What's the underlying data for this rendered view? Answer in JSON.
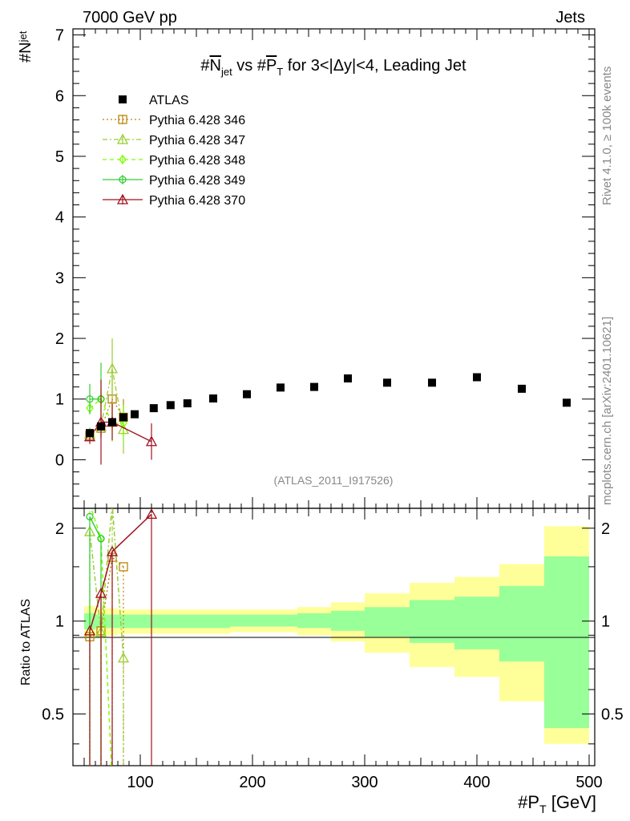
{
  "header": {
    "left": "7000 GeV pp",
    "right": "Jets"
  },
  "side_text": {
    "rivet": "Rivet 4.1.0, ≥ 100k events",
    "mcplots": "mcplots.cern.ch [arXiv:2401.10621]"
  },
  "chart_data": {
    "type": "scatter",
    "title": "#N_jet vs #P_T for 3<|Δy|<4, Leading Jet",
    "title_parts": {
      "a": "#",
      "b": "N",
      "c": "jet",
      "d": " vs #",
      "e": "P",
      "f": "T",
      "g": " for 3<|Δy|<4, Leading Jet"
    },
    "ylabel": {
      "main": "#N",
      "sub": "jet"
    },
    "xlabel": {
      "main": "#P",
      "sub": "T",
      "unit": " [GeV]"
    },
    "ratio_ylabel": "Ratio to ATLAS",
    "analysis_tag": "(ATLAS_2011_I917526)",
    "xlim": [
      40,
      505
    ],
    "ylim": [
      -0.8,
      7.1
    ],
    "ratio_ylim": [
      0.34,
      2.32
    ],
    "x_ticks": [
      100,
      200,
      300,
      400,
      500
    ],
    "x_tick_labels": [
      "100",
      "200",
      "300",
      "400",
      "500"
    ],
    "y_ticks": [
      0,
      1,
      2,
      3,
      4,
      5,
      6,
      7
    ],
    "y_tick_labels": [
      "0",
      "1",
      "2",
      "3",
      "4",
      "5",
      "6",
      "7"
    ],
    "ratio_ticks": [
      0.5,
      1,
      2
    ],
    "ratio_tick_labels": [
      "0.5",
      "1",
      "2"
    ],
    "data": {
      "name": "ATLAS",
      "color": "#000000",
      "x": [
        55,
        65,
        75,
        85,
        95,
        112,
        127,
        142,
        165,
        195,
        225,
        255,
        285,
        320,
        360,
        400,
        440,
        480
      ],
      "y": [
        0.44,
        0.55,
        0.62,
        0.7,
        0.75,
        0.85,
        0.9,
        0.93,
        1.01,
        1.08,
        1.19,
        1.2,
        1.34,
        1.27,
        1.27,
        1.36,
        1.17,
        0.94
      ]
    },
    "ratio_bands": {
      "edges": [
        50,
        60,
        70,
        80,
        90,
        100,
        120,
        135,
        150,
        180,
        210,
        240,
        270,
        300,
        340,
        380,
        420,
        460,
        500
      ],
      "inner_lo": [
        0.94,
        0.95,
        0.95,
        0.95,
        0.95,
        0.95,
        0.95,
        0.95,
        0.95,
        0.96,
        0.96,
        0.95,
        0.93,
        0.89,
        0.85,
        0.81,
        0.74,
        0.45
      ],
      "inner_hi": [
        1.06,
        1.05,
        1.05,
        1.05,
        1.05,
        1.05,
        1.05,
        1.05,
        1.05,
        1.05,
        1.05,
        1.06,
        1.08,
        1.11,
        1.17,
        1.2,
        1.3,
        1.62
      ],
      "outer_lo": [
        0.88,
        0.9,
        0.9,
        0.91,
        0.91,
        0.91,
        0.91,
        0.91,
        0.91,
        0.92,
        0.92,
        0.9,
        0.86,
        0.79,
        0.71,
        0.66,
        0.55,
        0.4
      ],
      "outer_hi": [
        1.12,
        1.1,
        1.1,
        1.09,
        1.09,
        1.09,
        1.09,
        1.09,
        1.09,
        1.09,
        1.09,
        1.11,
        1.15,
        1.23,
        1.33,
        1.39,
        1.53,
        2.03
      ],
      "inner_color": "#99ff99",
      "outer_color": "#ffff99"
    },
    "series": [
      {
        "name": "Pythia 6.428 346",
        "color": "#b8860b",
        "marker": "square",
        "dash": "2,3",
        "x": [
          55,
          65,
          75,
          85
        ],
        "y": [
          0.4,
          0.52,
          1.0,
          0.7
        ],
        "yerr": [
          0.08,
          0.15,
          0.5,
          0.3
        ],
        "ratio": [
          0.89,
          0.93,
          1.61,
          1.5
        ]
      },
      {
        "name": "Pythia 6.428 347",
        "color": "#9acd32",
        "marker": "triangle",
        "dash": "6,3,2,3",
        "x": [
          55,
          65,
          75,
          85
        ],
        "y": [
          0.43,
          0.55,
          1.5,
          0.5
        ],
        "yerr": [
          0.1,
          0.2,
          0.5,
          0.4
        ],
        "ratio": [
          1.95,
          0.92,
          2.4,
          0.76
        ]
      },
      {
        "name": "Pythia 6.428 348",
        "color": "#7fff00",
        "marker": "diamond",
        "dash": "5,4",
        "x": [
          55,
          65,
          75,
          85
        ],
        "y": [
          0.85,
          1.0,
          0.6,
          0.6
        ],
        "yerr": [
          0.1,
          0.15,
          0.3,
          0.3
        ],
        "ratio": [
          2.4,
          1.85,
          0.3,
          0.3
        ]
      },
      {
        "name": "Pythia 6.428 349",
        "color": "#33cc33",
        "marker": "circle",
        "dash": "",
        "x": [
          55,
          65
        ],
        "y": [
          1.0,
          1.0
        ],
        "yerr": [
          0.25,
          0.6
        ],
        "ratio": [
          2.18,
          1.85
        ]
      },
      {
        "name": "Pythia 6.428 370",
        "color": "#a01020",
        "marker": "triangle-open",
        "dash": "",
        "x": [
          55,
          65,
          75,
          110
        ],
        "y": [
          0.38,
          0.62,
          0.62,
          0.3
        ],
        "yerr": [
          0.12,
          0.7,
          0.3,
          0.3
        ],
        "ratio": [
          0.93,
          1.23,
          1.68,
          2.22
        ]
      }
    ],
    "legend_position": "top-left"
  }
}
